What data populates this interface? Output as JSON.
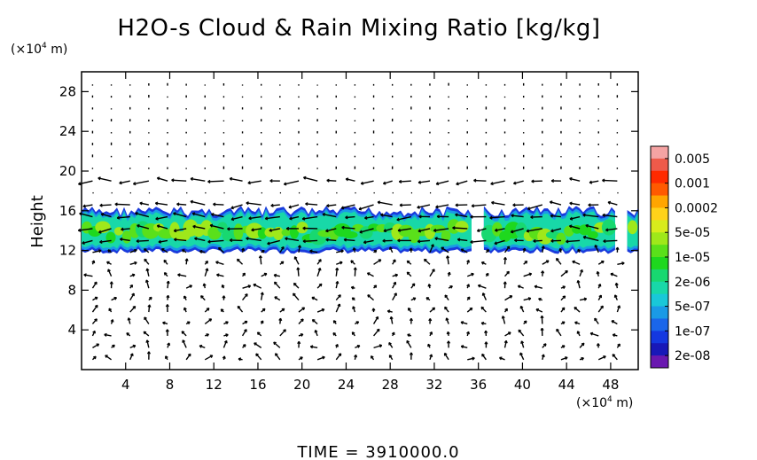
{
  "chart_data": {
    "type": "heatmap",
    "title": "H2O-s Cloud & Rain Mixing Ratio [kg/kg]",
    "ylabel": "Height",
    "y_unit": {
      "prefix": "(×10",
      "exp": "4",
      "suffix": " m)"
    },
    "x_unit": {
      "prefix": "(×10",
      "exp": "4",
      "suffix": " m)"
    },
    "xlim": [
      0,
      50.5
    ],
    "ylim": [
      0,
      30
    ],
    "x_ticks": [
      4,
      8,
      12,
      16,
      20,
      24,
      28,
      32,
      36,
      40,
      44,
      48
    ],
    "y_ticks": [
      4,
      8,
      12,
      16,
      20,
      24,
      28
    ],
    "x_tick_labels": [
      "4",
      "8",
      "12",
      "16",
      "20",
      "24",
      "28",
      "32",
      "36",
      "40",
      "44",
      "48"
    ],
    "y_tick_labels": [
      "4",
      "8",
      "12",
      "16",
      "20",
      "24",
      "28"
    ],
    "colorbar": {
      "labels": [
        "0.005",
        "0.001",
        "0.0002",
        "5e-05",
        "1e-05",
        "2e-06",
        "5e-07",
        "1e-07",
        "2e-08"
      ],
      "colors_top_to_bottom": [
        "#f5a3a3",
        "#ee5a4a",
        "#ff2a00",
        "#ff5a00",
        "#ffa500",
        "#ffd21a",
        "#d8ec1c",
        "#9fe81a",
        "#5ae01a",
        "#1ed81e",
        "#18d870",
        "#18d8a8",
        "#19c8d8",
        "#1a9ae6",
        "#1a66ea",
        "#1438e0",
        "#1818b8",
        "#6a18b0"
      ]
    },
    "cloud_layer": {
      "description_values": "mixing ratio field concentrated between heights 12 and 16.5",
      "y_bottom": 12,
      "y_top": 16.5,
      "segments": [
        [
          0,
          35.5
        ],
        [
          36.5,
          48.5
        ],
        [
          49.5,
          50.5
        ]
      ],
      "core_value": "1e-05",
      "edge_value": "2e-08"
    },
    "wind_vectors": {
      "strong_levels": [
        13,
        14,
        16,
        19
      ]
    },
    "grid": false
  },
  "footer": {
    "label": "TIME",
    "equals": "=",
    "value": "3910000.0"
  }
}
